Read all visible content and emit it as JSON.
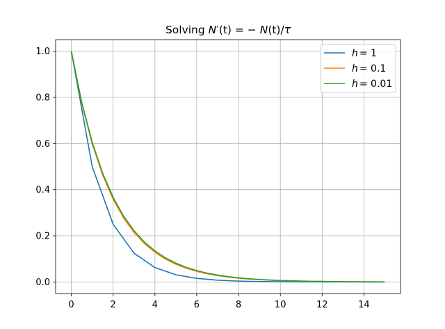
{
  "chart_data": {
    "type": "line",
    "title": "Solving N′(t) = − N(t)/τ",
    "title_parts": {
      "prefix": "Solving ",
      "lhs_n": "N",
      "lhs_prime_t": "′(t) = − ",
      "rhs_n": "N",
      "rhs_rest": "(t)/",
      "tau": "τ"
    },
    "xlabel": "",
    "ylabel": "",
    "xlim": [
      -0.75,
      15.75
    ],
    "ylim": [
      -0.05,
      1.05
    ],
    "x_ticks": [
      0,
      2,
      4,
      6,
      8,
      10,
      12,
      14
    ],
    "y_ticks": [
      0.0,
      0.2,
      0.4,
      0.6,
      0.8,
      1.0
    ],
    "x_tick_labels": [
      "0",
      "2",
      "4",
      "6",
      "8",
      "10",
      "12",
      "14"
    ],
    "y_tick_labels": [
      "0.0",
      "0.2",
      "0.4",
      "0.6",
      "0.8",
      "1.0"
    ],
    "grid": true,
    "legend_position": "top-right",
    "series": [
      {
        "name": "h = 1",
        "legend_symbol": "h",
        "legend_value": "= 1",
        "color": "#1f77b4",
        "x": [
          0,
          1,
          2,
          3,
          4,
          5,
          6,
          7,
          8,
          9,
          10,
          11,
          12,
          13,
          14,
          15
        ],
        "y": [
          1.0,
          0.5,
          0.25,
          0.125,
          0.0625,
          0.03125,
          0.015625,
          0.0078,
          0.0039,
          0.00195,
          0.00098,
          0.00049,
          0.00024,
          0.00012,
          6e-05,
          3e-05
        ]
      },
      {
        "name": "h = 0.1",
        "legend_symbol": "h",
        "legend_value": "= 0.1",
        "color": "#ff7f0e",
        "x": [
          0,
          0.5,
          1,
          1.5,
          2,
          2.5,
          3,
          3.5,
          4,
          4.5,
          5,
          5.5,
          6,
          6.5,
          7,
          7.5,
          8,
          8.5,
          9,
          9.5,
          10,
          10.5,
          11,
          11.5,
          12,
          12.5,
          13,
          13.5,
          14,
          14.5,
          15
        ],
        "y": [
          1.0,
          0.7738,
          0.5987,
          0.4633,
          0.3585,
          0.2774,
          0.2146,
          0.1661,
          0.1285,
          0.0994,
          0.0769,
          0.0595,
          0.0461,
          0.0356,
          0.0276,
          0.0213,
          0.0165,
          0.0128,
          0.0099,
          0.0077,
          0.0059,
          0.0046,
          0.0035,
          0.0027,
          0.0021,
          0.0016,
          0.0013,
          0.001,
          0.0008,
          0.0006,
          0.0005
        ]
      },
      {
        "name": "h = 0.01",
        "legend_symbol": "h",
        "legend_value": "= 0.01",
        "color": "#2ca02c",
        "x": [
          0,
          0.5,
          1,
          1.5,
          2,
          2.5,
          3,
          3.5,
          4,
          4.5,
          5,
          5.5,
          6,
          6.5,
          7,
          7.5,
          8,
          8.5,
          9,
          9.5,
          10,
          10.5,
          11,
          11.5,
          12,
          12.5,
          13,
          13.5,
          14,
          14.5,
          15
        ],
        "y": [
          1.0,
          0.7783,
          0.6058,
          0.4715,
          0.367,
          0.2856,
          0.2223,
          0.173,
          0.1347,
          0.1048,
          0.0816,
          0.0635,
          0.0494,
          0.0385,
          0.03,
          0.0233,
          0.0181,
          0.0141,
          0.011,
          0.0086,
          0.0067,
          0.0052,
          0.004,
          0.0031,
          0.0024,
          0.0019,
          0.0015,
          0.0012,
          0.0009,
          0.0007,
          0.0005
        ]
      }
    ]
  }
}
